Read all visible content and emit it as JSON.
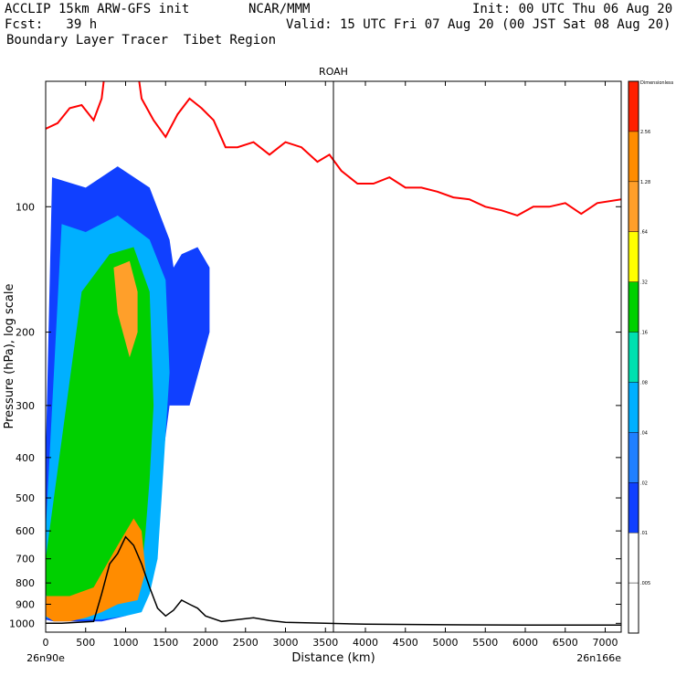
{
  "header": {
    "line1_left": "ACCLIP 15km ARW-GFS init",
    "line1_center": "NCAR/MMM",
    "line1_right": "Init: 00 UTC Thu 06 Aug 20",
    "line2_left": "Fcst:   39 h",
    "line2_right": "Valid: 15 UTC Fri 07 Aug 20 (00 JST Sat 08 Aug 20)",
    "line3_left": "Boundary Layer Tracer  Tibet Region"
  },
  "chart_data": {
    "type": "cross-section contour",
    "title": "ROAH",
    "xlabel": "Distance (km)",
    "ylabel": "Pressure (hPa), log scale",
    "x_start_label": "26n90e",
    "x_end_label": "26n166e",
    "xlim": [
      0,
      7200
    ],
    "ylim": [
      1050,
      50
    ],
    "y_scale": "log",
    "x_ticks": [
      "0",
      "500",
      "1000",
      "1500",
      "2000",
      "2500",
      "3000",
      "3500",
      "4000",
      "4500",
      "5000",
      "5500",
      "6000",
      "6500",
      "7000"
    ],
    "y_ticks": [
      "100",
      "200",
      "300",
      "400",
      "500",
      "600",
      "700",
      "800",
      "900",
      "1000"
    ],
    "marker_line_x": 3600,
    "colorbar": {
      "labels": [
        "Dimensionless",
        "2.56",
        "1.28",
        ".64",
        ".32",
        ".16",
        ".08",
        ".04",
        ".02",
        ".01",
        ".005"
      ],
      "colors": [
        "#ff2000",
        "#ff8c00",
        "#ff9f2a",
        "#ffff00",
        "#00d000",
        "#00e0b0",
        "#00b0ff",
        "#2080ff",
        "#1040ff",
        "#ffffff"
      ]
    },
    "tropopause_line": {
      "color": "#ff0000",
      "x": [
        0,
        150,
        300,
        450,
        600,
        700,
        800,
        950,
        1100,
        1200,
        1350,
        1500,
        1650,
        1800,
        1950,
        2100,
        2250,
        2400,
        2600,
        2800,
        3000,
        3200,
        3400,
        3550,
        3700,
        3900,
        4100,
        4300,
        4500,
        4700,
        4900,
        5100,
        5300,
        5500,
        5700,
        5900,
        6100,
        6300,
        6500,
        6700,
        6900,
        7200
      ],
      "y": [
        65,
        63,
        58,
        57,
        62,
        55,
        38,
        40,
        40,
        55,
        62,
        68,
        60,
        55,
        58,
        62,
        72,
        72,
        70,
        75,
        70,
        72,
        78,
        75,
        82,
        88,
        88,
        85,
        90,
        90,
        92,
        95,
        96,
        100,
        102,
        105,
        100,
        100,
        98,
        104,
        98,
        96
      ]
    },
    "terrain_line": {
      "color": "#000000",
      "x": [
        0,
        200,
        400,
        600,
        700,
        800,
        900,
        1000,
        1100,
        1200,
        1300,
        1400,
        1500,
        1600,
        1700,
        1800,
        1900,
        2000,
        2200,
        2400,
        2600,
        2800,
        3000,
        3500,
        4000,
        5000,
        6000,
        7200
      ],
      "y": [
        1000,
        1000,
        995,
        990,
        850,
        720,
        680,
        620,
        650,
        720,
        820,
        920,
        960,
        930,
        880,
        900,
        920,
        960,
        990,
        980,
        970,
        985,
        995,
        1000,
        1005,
        1008,
        1010,
        1010
      ]
    },
    "plumes": [
      {
        "level": ".01",
        "x": [
          80,
          500,
          900,
          1300,
          1550,
          1600,
          1700,
          1900,
          2050,
          2050,
          1800,
          1550,
          1400,
          1300,
          1200,
          1000,
          700,
          500,
          250,
          100,
          0,
          0
        ],
        "y": [
          85,
          90,
          80,
          90,
          120,
          140,
          130,
          125,
          140,
          200,
          300,
          300,
          500,
          700,
          800,
          960,
          990,
          990,
          990,
          990,
          980,
          400
        ]
      },
      {
        "level": ".04",
        "x": [
          200,
          500,
          900,
          1300,
          1500,
          1550,
          1500,
          1450,
          1400,
          1300,
          1200,
          1000,
          700,
          400,
          150,
          0,
          0
        ],
        "y": [
          110,
          115,
          105,
          120,
          150,
          250,
          350,
          500,
          700,
          850,
          940,
          960,
          980,
          980,
          980,
          970,
          600
        ]
      },
      {
        "level": ".16",
        "x": [
          450,
          800,
          1100,
          1300,
          1350,
          1300,
          1250,
          1200,
          1100,
          900,
          600,
          300,
          100,
          0,
          0
        ],
        "y": [
          160,
          130,
          125,
          160,
          300,
          450,
          600,
          750,
          870,
          900,
          920,
          930,
          920,
          850,
          700
        ]
      },
      {
        "level": ".64",
        "x": [
          850,
          1050,
          1150,
          1150,
          1050,
          900
        ],
        "y": [
          140,
          135,
          160,
          200,
          230,
          180
        ]
      },
      {
        "level": "1.28",
        "x": [
          0,
          300,
          600,
          900,
          1100,
          1200,
          1250,
          1150,
          900,
          700,
          500,
          300,
          100,
          0
        ],
        "y": [
          860,
          860,
          820,
          650,
          560,
          600,
          750,
          880,
          900,
          940,
          970,
          990,
          990,
          960
        ]
      }
    ]
  }
}
